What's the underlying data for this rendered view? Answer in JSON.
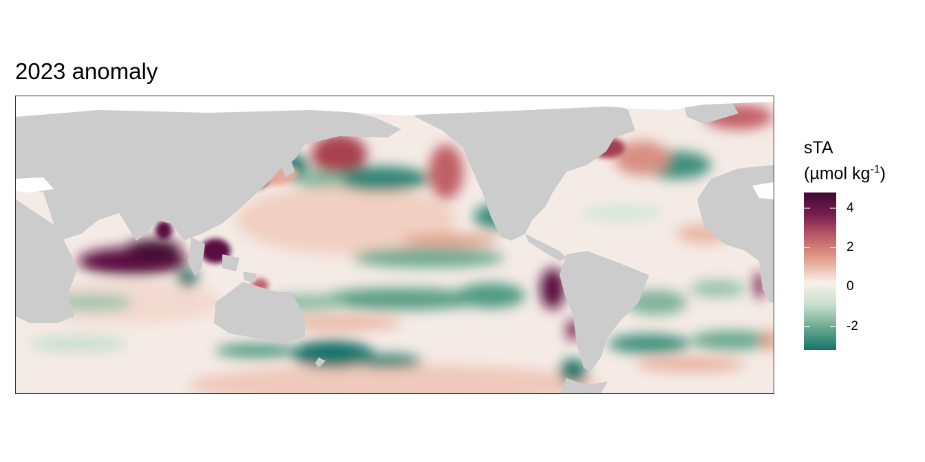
{
  "title": "2023 anomaly",
  "legend": {
    "title_line1": "sTA",
    "title_line2_prefix": "(µmol kg",
    "title_line2_sup": "-1",
    "title_line2_suffix": ")",
    "min": -3.2,
    "max": 4.8,
    "ticks": [
      {
        "value": 4,
        "label": "4"
      },
      {
        "value": 2,
        "label": "2"
      },
      {
        "value": 0,
        "label": "0"
      },
      {
        "value": -2,
        "label": "-2"
      }
    ],
    "colors": [
      "#16736c",
      "#6aa98f",
      "#c8dfcd",
      "#f6f0ea",
      "#e2a38e",
      "#c0606a",
      "#7a1e4f",
      "#3f0a32"
    ]
  },
  "colors": {
    "land": "#cccccc",
    "missing": "#ffffff",
    "frame": "#333333"
  }
}
